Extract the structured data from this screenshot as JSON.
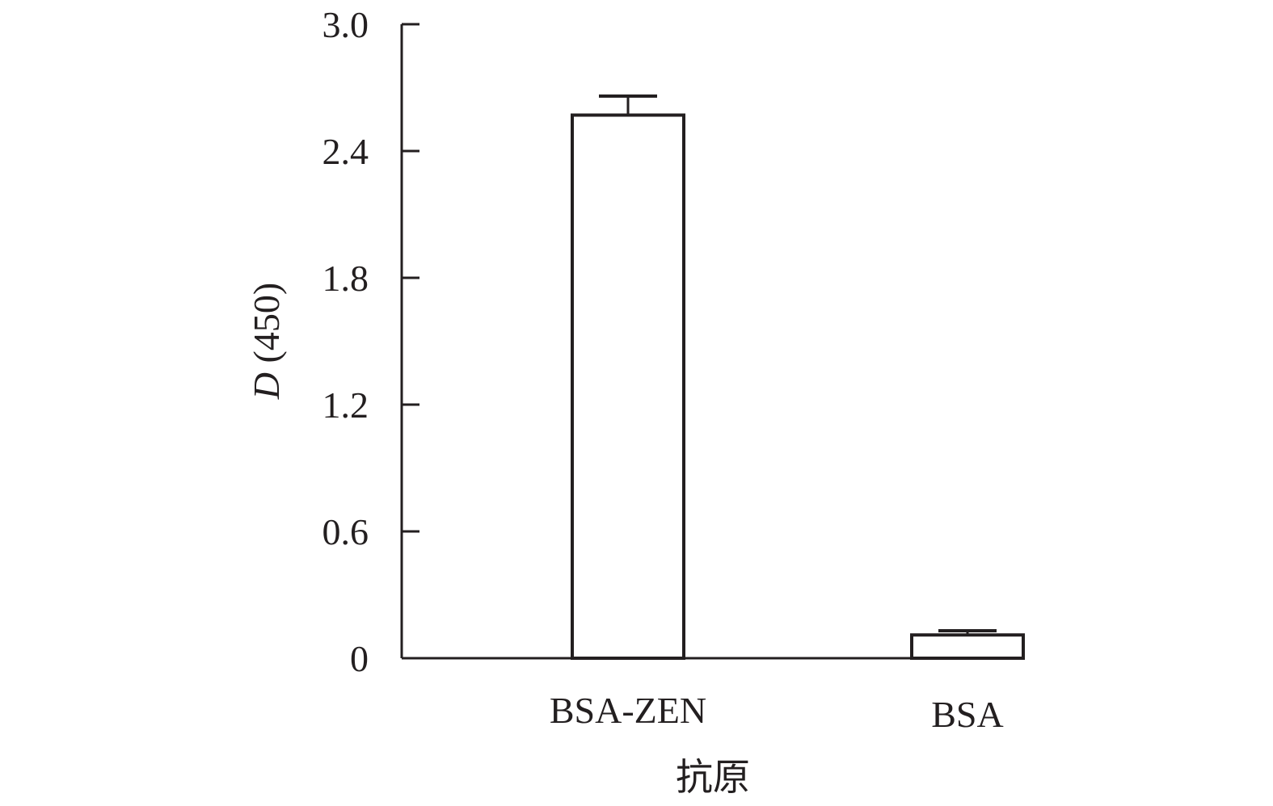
{
  "chart_data": {
    "type": "bar",
    "title": "",
    "xlabel": "抗原",
    "ylabel": {
      "italic": "D",
      "rest": " (450)"
    },
    "categories": [
      "BSA-ZEN",
      "BSA"
    ],
    "values": [
      2.57,
      0.11
    ],
    "error": [
      0.09,
      0.02
    ],
    "ylim": [
      0,
      3.0
    ],
    "yticks": [
      0,
      0.6,
      1.2,
      1.8,
      2.4,
      3.0
    ],
    "ytick_labels": [
      "0",
      "0.6",
      "1.2",
      "1.8",
      "2.4",
      "3.0"
    ],
    "grid": false,
    "bar_fill": "#ffffff",
    "stroke_color": "#231f20"
  }
}
